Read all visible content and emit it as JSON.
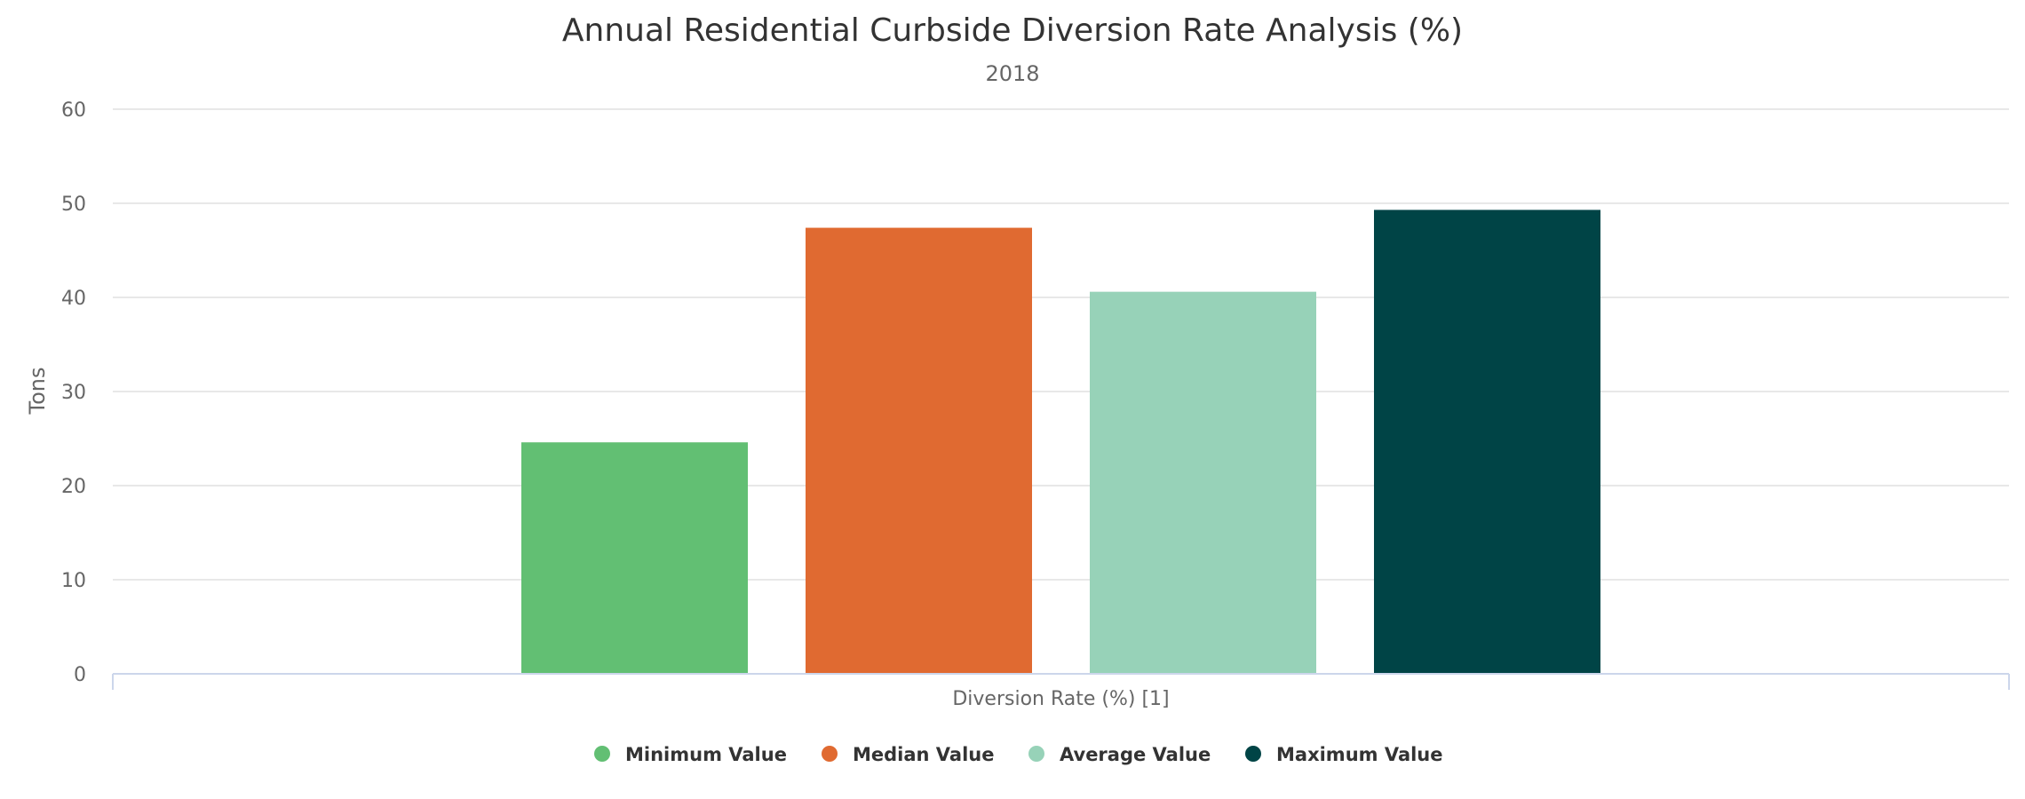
{
  "chart_data": {
    "type": "bar",
    "title": "Annual Residential Curbside Diversion Rate Analysis (%)",
    "subtitle": "2018",
    "ylabel": "Tons",
    "categories": [
      "Diversion Rate (%) [1]"
    ],
    "ylim": [
      0,
      60
    ],
    "yticks": [
      0,
      10,
      20,
      30,
      40,
      50,
      60
    ],
    "grid": true,
    "legend_position": "bottom-center",
    "series": [
      {
        "name": "Minimum Value",
        "values": [
          24.6
        ],
        "color": "#62bf73"
      },
      {
        "name": "Median Value",
        "values": [
          47.4
        ],
        "color": "#e06a31"
      },
      {
        "name": "Average Value",
        "values": [
          40.6
        ],
        "color": "#97d2b8"
      },
      {
        "name": "Maximum Value",
        "values": [
          49.3
        ],
        "color": "#004446"
      }
    ]
  }
}
